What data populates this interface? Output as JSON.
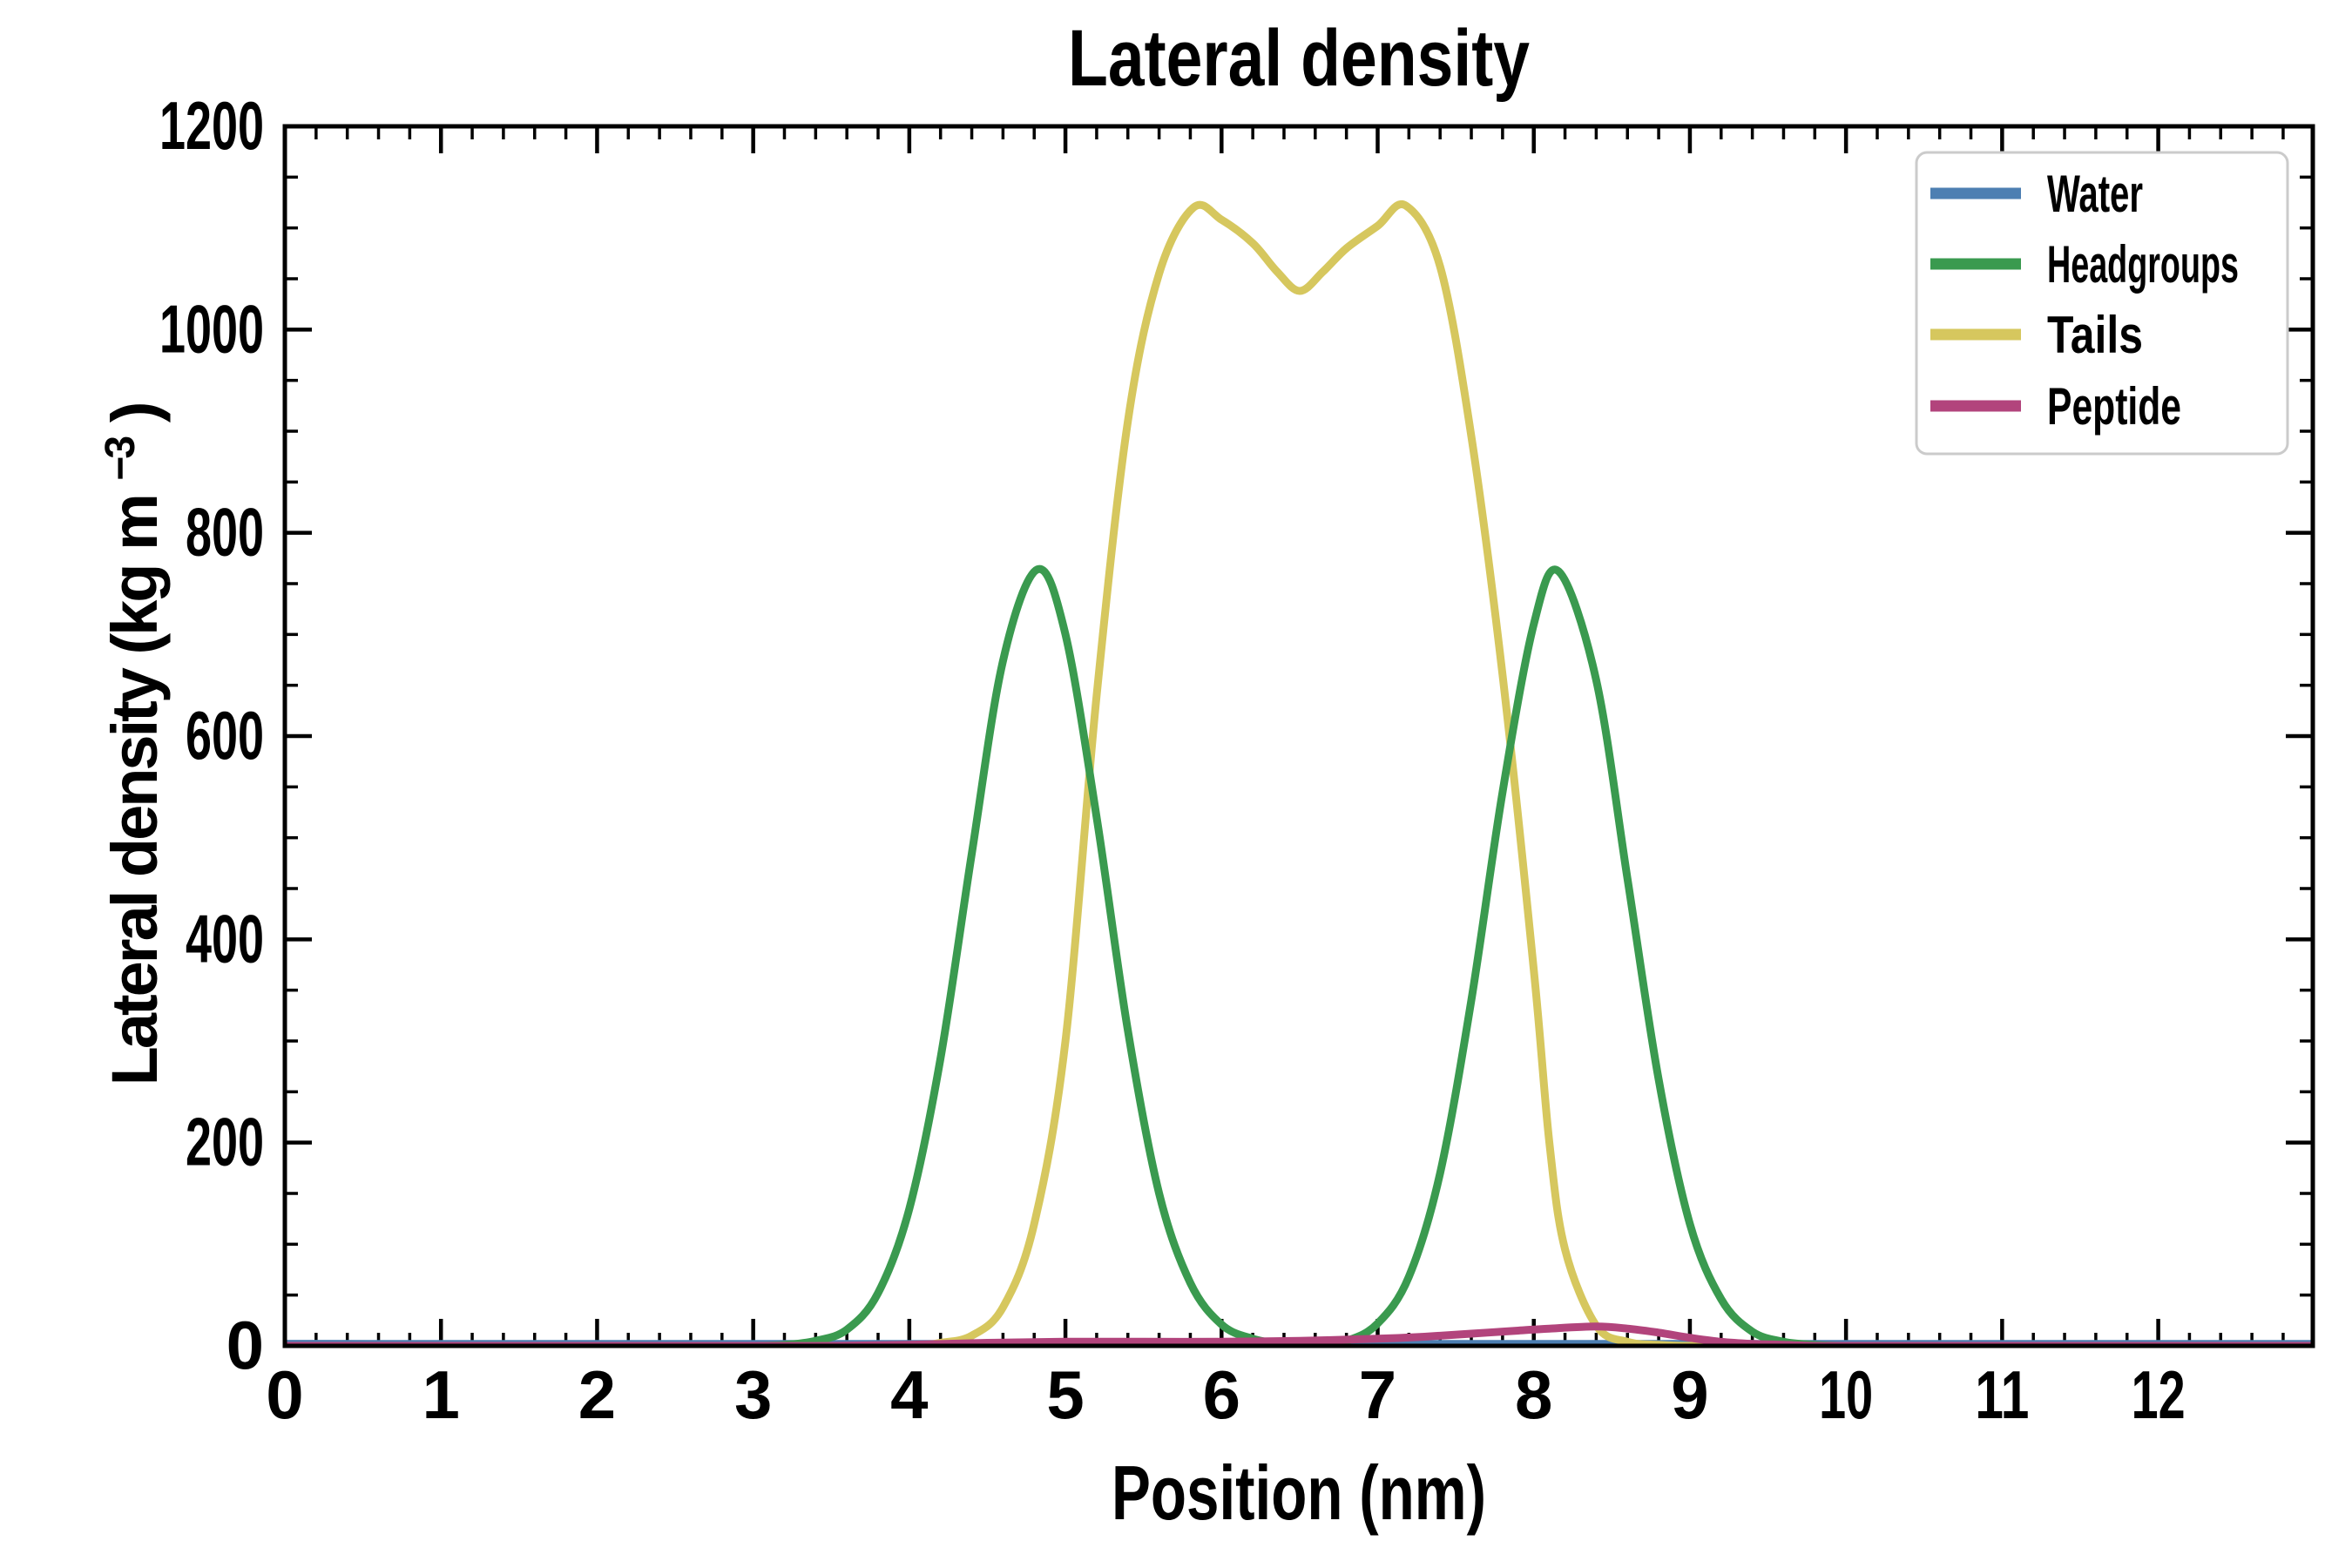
{
  "title": "Lateral density",
  "axes": {
    "xlabel": "Position (nm)",
    "ylabel_main": "Lateral density (kg m",
    "ylabel_sup": "−3",
    "ylabel_close": ")",
    "x_major_ticks": [
      0,
      1,
      2,
      3,
      4,
      5,
      6,
      7,
      8,
      9,
      10,
      11,
      12
    ],
    "y_major_ticks": [
      0,
      200,
      400,
      600,
      800,
      1000,
      1200
    ],
    "x_minor_step": 0.2,
    "y_minor_step": 50,
    "xlim": [
      0,
      12.99
    ],
    "ylim": [
      0,
      1200
    ]
  },
  "legend": {
    "position": "upper right",
    "items": [
      "Water",
      "Headgroups",
      "Tails",
      "Peptide"
    ]
  },
  "chart_data": {
    "type": "line",
    "title": "Lateral density",
    "xlabel": "Position (nm)",
    "ylabel": "Lateral density (kg m⁻³)",
    "xlim": [
      0,
      12.99
    ],
    "ylim": [
      0,
      1200
    ],
    "grid": false,
    "legend_position": "upper right",
    "series": [
      {
        "name": "Water",
        "color": "#4d7fb2",
        "points": [
          [
            0,
            2
          ],
          [
            1,
            2
          ],
          [
            2,
            2
          ],
          [
            3,
            2
          ],
          [
            4,
            2
          ],
          [
            5,
            2
          ],
          [
            6,
            2
          ],
          [
            7,
            2
          ],
          [
            8,
            2
          ],
          [
            9,
            2
          ],
          [
            10,
            2
          ],
          [
            11,
            2
          ],
          [
            12,
            2
          ],
          [
            12.99,
            2
          ]
        ]
      },
      {
        "name": "Headgroups",
        "color": "#3a9a4f",
        "points": [
          [
            0,
            0
          ],
          [
            0.5,
            0
          ],
          [
            1,
            0
          ],
          [
            1.5,
            0
          ],
          [
            2,
            0
          ],
          [
            2.5,
            0
          ],
          [
            3,
            0
          ],
          [
            3.2,
            1
          ],
          [
            3.4,
            5
          ],
          [
            3.6,
            16
          ],
          [
            3.8,
            52
          ],
          [
            4,
            135
          ],
          [
            4.2,
            283
          ],
          [
            4.4,
            484
          ],
          [
            4.6,
            674
          ],
          [
            4.82,
            764
          ],
          [
            5,
            700
          ],
          [
            5.2,
            520
          ],
          [
            5.4,
            310
          ],
          [
            5.6,
            150
          ],
          [
            5.8,
            62
          ],
          [
            6,
            21
          ],
          [
            6.2,
            7
          ],
          [
            6.4,
            2
          ],
          [
            6.6,
            1
          ],
          [
            6.8,
            5
          ],
          [
            7,
            22
          ],
          [
            7.2,
            68
          ],
          [
            7.4,
            170
          ],
          [
            7.6,
            340
          ],
          [
            7.8,
            545
          ],
          [
            8,
            710
          ],
          [
            8.16,
            762
          ],
          [
            8.4,
            655
          ],
          [
            8.6,
            460
          ],
          [
            8.8,
            262
          ],
          [
            9,
            120
          ],
          [
            9.2,
            46
          ],
          [
            9.4,
            14
          ],
          [
            9.6,
            4
          ],
          [
            9.8,
            1
          ],
          [
            10,
            0
          ],
          [
            10.5,
            0
          ],
          [
            11,
            0
          ],
          [
            11.5,
            0
          ],
          [
            12,
            0
          ],
          [
            12.5,
            0
          ],
          [
            12.99,
            0
          ]
        ]
      },
      {
        "name": "Tails",
        "color": "#d6c75e",
        "points": [
          [
            0,
            0
          ],
          [
            0.5,
            0
          ],
          [
            1,
            0
          ],
          [
            1.5,
            0
          ],
          [
            2,
            0
          ],
          [
            2.5,
            0
          ],
          [
            3,
            0
          ],
          [
            3.5,
            0
          ],
          [
            4,
            0
          ],
          [
            4.2,
            3
          ],
          [
            4.4,
            10
          ],
          [
            4.6,
            38
          ],
          [
            4.8,
            120
          ],
          [
            5,
            300
          ],
          [
            5.2,
            640
          ],
          [
            5.4,
            910
          ],
          [
            5.6,
            1055
          ],
          [
            5.82,
            1120
          ],
          [
            6,
            1108
          ],
          [
            6.2,
            1085
          ],
          [
            6.35,
            1058
          ],
          [
            6.5,
            1038
          ],
          [
            6.65,
            1057
          ],
          [
            6.8,
            1080
          ],
          [
            7,
            1102
          ],
          [
            7.18,
            1122
          ],
          [
            7.4,
            1062
          ],
          [
            7.6,
            895
          ],
          [
            7.8,
            660
          ],
          [
            8,
            370
          ],
          [
            8.1,
            200
          ],
          [
            8.2,
            95
          ],
          [
            8.4,
            20
          ],
          [
            8.6,
            4
          ],
          [
            8.8,
            1
          ],
          [
            9,
            0
          ],
          [
            9.5,
            0
          ],
          [
            10,
            0
          ],
          [
            10.5,
            0
          ],
          [
            11,
            0
          ],
          [
            11.5,
            0
          ],
          [
            12,
            0
          ],
          [
            12.5,
            0
          ],
          [
            12.99,
            0
          ]
        ]
      },
      {
        "name": "Peptide",
        "color": "#b2447c",
        "points": [
          [
            0,
            0
          ],
          [
            0.5,
            0
          ],
          [
            1,
            0
          ],
          [
            1.5,
            0
          ],
          [
            2,
            0
          ],
          [
            2.5,
            0
          ],
          [
            3,
            0
          ],
          [
            3.5,
            0
          ],
          [
            4,
            1
          ],
          [
            4.5,
            3
          ],
          [
            5,
            4
          ],
          [
            5.5,
            4
          ],
          [
            6,
            4
          ],
          [
            6.5,
            5
          ],
          [
            7,
            7
          ],
          [
            7.3,
            9
          ],
          [
            7.6,
            12
          ],
          [
            7.9,
            15
          ],
          [
            8.1,
            17
          ],
          [
            8.4,
            19
          ],
          [
            8.6,
            17
          ],
          [
            8.8,
            13
          ],
          [
            9,
            8
          ],
          [
            9.2,
            4
          ],
          [
            9.4,
            2
          ],
          [
            9.6,
            1
          ],
          [
            9.8,
            0
          ],
          [
            10,
            0
          ],
          [
            10.5,
            0
          ],
          [
            11,
            0
          ],
          [
            11.5,
            0
          ],
          [
            12,
            0
          ],
          [
            12.5,
            0
          ],
          [
            12.99,
            0
          ]
        ]
      }
    ]
  }
}
